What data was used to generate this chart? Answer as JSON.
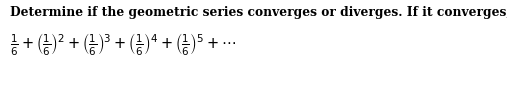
{
  "title": "Determine if the geometric series converges or diverges. If it converges, find its sum.",
  "title_fontsize": 8.8,
  "title_fontweight": "bold",
  "series_latex": "$\\frac{1}{6} + \\left(\\frac{1}{6}\\right)^{2} + \\left(\\frac{1}{6}\\right)^{3} + \\left(\\frac{1}{6}\\right)^{4} + \\left(\\frac{1}{6}\\right)^{5} + \\cdots$",
  "series_fontsize": 10.5,
  "background_color": "#ffffff",
  "text_color": "#000000",
  "figsize": [
    5.07,
    0.86
  ],
  "dpi": 100
}
